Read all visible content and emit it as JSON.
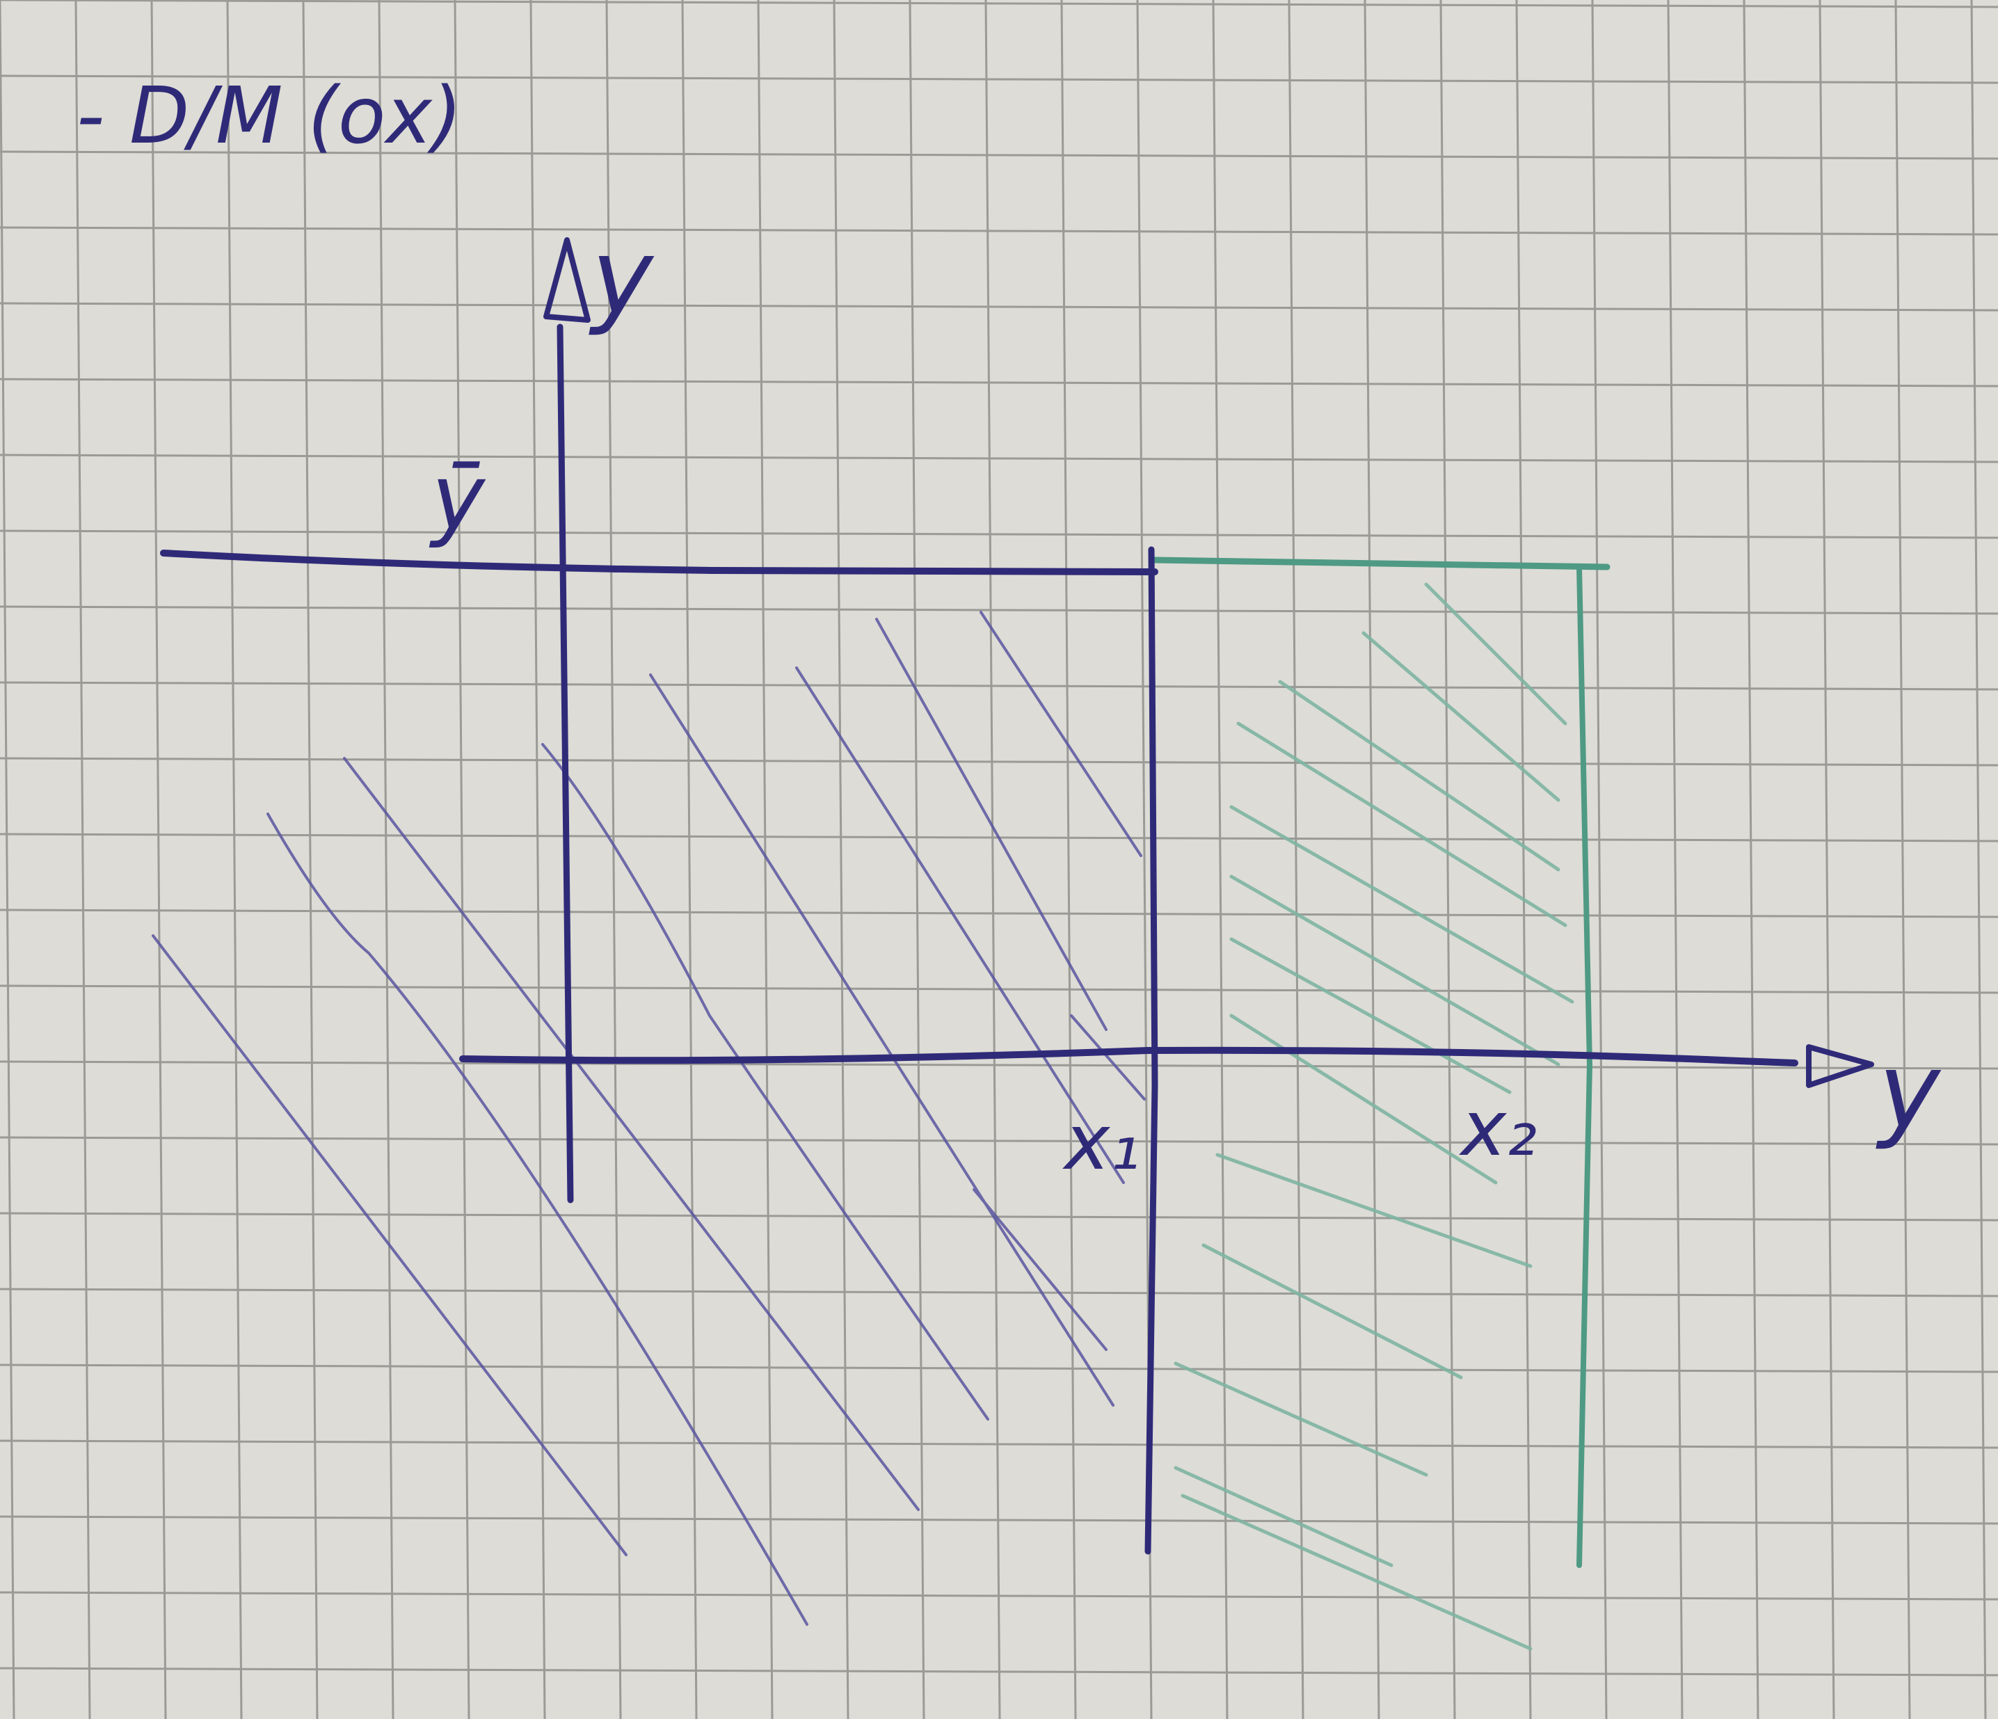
{
  "paper": {
    "background": "#dddcd6",
    "grid_color": "#8f8f8c"
  },
  "ink": {
    "purple": "#2f2a78",
    "purple_light": "#5a56a0",
    "green": "#4f9a84",
    "green_light": "#7fb5a3"
  },
  "title": "- D/M (ox)",
  "labels": {
    "y_axis": "y",
    "x_axis": "y",
    "y_bar": "ȳ",
    "x1": "x₁",
    "x2": "x₂"
  }
}
